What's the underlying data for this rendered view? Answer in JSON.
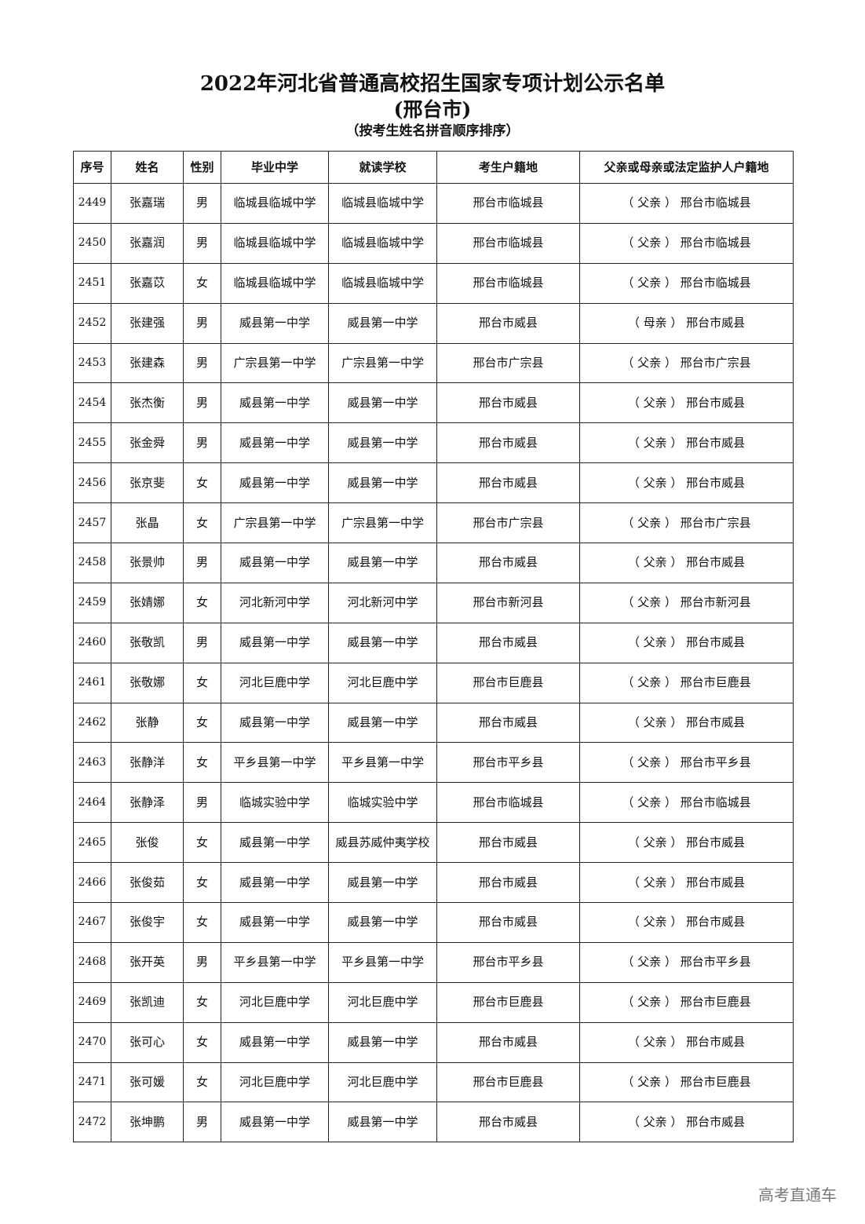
{
  "title": "2022年河北省普通高校招生国家专项计划公示名单",
  "city": "(邢台市)",
  "subtitle": "（按考生姓名拼音顺序排序）",
  "columns": [
    "序号",
    "姓名",
    "性别",
    "毕业中学",
    "就读学校",
    "考生户籍地",
    "父亲或母亲或法定监护人户籍地"
  ],
  "rows": [
    [
      "2449",
      "张嘉瑞",
      "男",
      "临城县临城中学",
      "临城县临城中学",
      "邢台市临城县",
      "（ 父亲 ） 邢台市临城县"
    ],
    [
      "2450",
      "张嘉润",
      "男",
      "临城县临城中学",
      "临城县临城中学",
      "邢台市临城县",
      "（ 父亲 ） 邢台市临城县"
    ],
    [
      "2451",
      "张嘉苡",
      "女",
      "临城县临城中学",
      "临城县临城中学",
      "邢台市临城县",
      "（ 父亲 ） 邢台市临城县"
    ],
    [
      "2452",
      "张建强",
      "男",
      "威县第一中学",
      "威县第一中学",
      "邢台市威县",
      "（ 母亲 ） 邢台市威县"
    ],
    [
      "2453",
      "张建森",
      "男",
      "广宗县第一中学",
      "广宗县第一中学",
      "邢台市广宗县",
      "（ 父亲 ） 邢台市广宗县"
    ],
    [
      "2454",
      "张杰衡",
      "男",
      "威县第一中学",
      "威县第一中学",
      "邢台市威县",
      "（ 父亲 ） 邢台市威县"
    ],
    [
      "2455",
      "张金舜",
      "男",
      "威县第一中学",
      "威县第一中学",
      "邢台市威县",
      "（ 父亲 ） 邢台市威县"
    ],
    [
      "2456",
      "张京斐",
      "女",
      "威县第一中学",
      "威县第一中学",
      "邢台市威县",
      "（ 父亲 ） 邢台市威县"
    ],
    [
      "2457",
      "张晶",
      "女",
      "广宗县第一中学",
      "广宗县第一中学",
      "邢台市广宗县",
      "（ 父亲 ） 邢台市广宗县"
    ],
    [
      "2458",
      "张景帅",
      "男",
      "威县第一中学",
      "威县第一中学",
      "邢台市威县",
      "（ 父亲 ） 邢台市威县"
    ],
    [
      "2459",
      "张婧娜",
      "女",
      "河北新河中学",
      "河北新河中学",
      "邢台市新河县",
      "（ 父亲 ） 邢台市新河县"
    ],
    [
      "2460",
      "张敬凯",
      "男",
      "威县第一中学",
      "威县第一中学",
      "邢台市威县",
      "（ 父亲 ） 邢台市威县"
    ],
    [
      "2461",
      "张敬娜",
      "女",
      "河北巨鹿中学",
      "河北巨鹿中学",
      "邢台市巨鹿县",
      "（ 父亲 ） 邢台市巨鹿县"
    ],
    [
      "2462",
      "张静",
      "女",
      "威县第一中学",
      "威县第一中学",
      "邢台市威县",
      "（ 父亲 ） 邢台市威县"
    ],
    [
      "2463",
      "张静洋",
      "女",
      "平乡县第一中学",
      "平乡县第一中学",
      "邢台市平乡县",
      "（ 父亲 ） 邢台市平乡县"
    ],
    [
      "2464",
      "张静泽",
      "男",
      "临城实验中学",
      "临城实验中学",
      "邢台市临城县",
      "（ 父亲 ） 邢台市临城县"
    ],
    [
      "2465",
      "张俊",
      "女",
      "威县第一中学",
      "威县苏威仲夷学校",
      "邢台市威县",
      "（ 父亲 ） 邢台市威县"
    ],
    [
      "2466",
      "张俊茹",
      "女",
      "威县第一中学",
      "威县第一中学",
      "邢台市威县",
      "（ 父亲 ） 邢台市威县"
    ],
    [
      "2467",
      "张俊宇",
      "女",
      "威县第一中学",
      "威县第一中学",
      "邢台市威县",
      "（ 父亲 ） 邢台市威县"
    ],
    [
      "2468",
      "张开英",
      "男",
      "平乡县第一中学",
      "平乡县第一中学",
      "邢台市平乡县",
      "（ 父亲 ） 邢台市平乡县"
    ],
    [
      "2469",
      "张凯迪",
      "女",
      "河北巨鹿中学",
      "河北巨鹿中学",
      "邢台市巨鹿县",
      "（ 父亲 ） 邢台市巨鹿县"
    ],
    [
      "2470",
      "张可心",
      "女",
      "威县第一中学",
      "威县第一中学",
      "邢台市威县",
      "（ 父亲 ） 邢台市威县"
    ],
    [
      "2471",
      "张可媛",
      "女",
      "河北巨鹿中学",
      "河北巨鹿中学",
      "邢台市巨鹿县",
      "（ 父亲 ） 邢台市巨鹿县"
    ],
    [
      "2472",
      "张坤鹏",
      "男",
      "威县第一中学",
      "威县第一中学",
      "邢台市威县",
      "（ 父亲 ） 邢台市威县"
    ]
  ],
  "watermark": "高考直通车"
}
